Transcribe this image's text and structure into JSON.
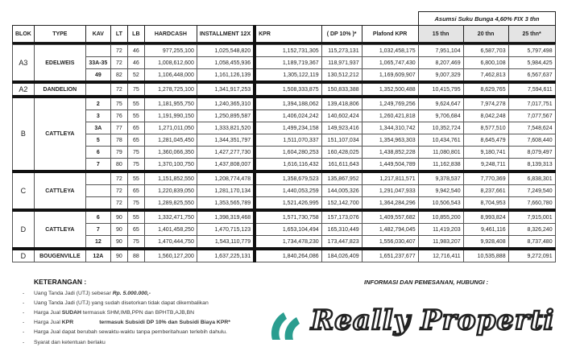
{
  "assumption": "Asumsi Suku Bunga 4,60% FIX 3 thn",
  "headers": [
    "BLOK",
    "TYPE",
    "KAV",
    "LT",
    "LB",
    "HARDCASH",
    "INSTALLMENT 12X",
    "KPR",
    "( DP 10% )*",
    "Plafond KPR",
    "15 thn",
    "20 thn",
    "25 thn*"
  ],
  "groups": [
    {
      "blok": "A3",
      "type": "EDELWEIS",
      "rows": [
        {
          "kav": "",
          "lt": "72",
          "lb": "46",
          "hardcash": "977,255,100",
          "installment": "1,025,548,820",
          "kpr": "1,152,731,305",
          "dp": "115,273,131",
          "plafond": "1,032,458,175",
          "t15": "7,951,104",
          "t20": "6,587,703",
          "t25": "5,797,498"
        },
        {
          "kav": "33A-35",
          "lt": "72",
          "lb": "46",
          "hardcash": "1,008,612,600",
          "installment": "1,058,455,936",
          "kpr": "1,189,719,367",
          "dp": "118,971,937",
          "plafond": "1,065,747,430",
          "t15": "8,207,469",
          "t20": "6,800,108",
          "t25": "5,984,425"
        },
        {
          "kav": "49",
          "lt": "82",
          "lb": "52",
          "hardcash": "1,106,448,000",
          "installment": "1,161,126,139",
          "kpr": "1,305,122,119",
          "dp": "130,512,212",
          "plafond": "1,169,609,907",
          "t15": "9,007,329",
          "t20": "7,462,813",
          "t25": "6,567,637"
        }
      ]
    },
    {
      "blok": "A2",
      "type": "DANDELION",
      "rows": [
        {
          "kav": "",
          "lt": "72",
          "lb": "75",
          "hardcash": "1,278,725,100",
          "installment": "1,341,917,253",
          "kpr": "1,508,333,875",
          "dp": "150,833,388",
          "plafond": "1,352,500,488",
          "t15": "10,415,795",
          "t20": "8,629,765",
          "t25": "7,594,611"
        }
      ]
    },
    {
      "blok": "B",
      "type": "CATTLEYA",
      "rows": [
        {
          "kav": "2",
          "lt": "75",
          "lb": "55",
          "hardcash": "1,181,955,750",
          "installment": "1,240,365,310",
          "kpr": "1,394,188,062",
          "dp": "139,418,806",
          "plafond": "1,249,769,256",
          "t15": "9,624,647",
          "t20": "7,974,278",
          "t25": "7,017,751"
        },
        {
          "kav": "3",
          "lt": "76",
          "lb": "55",
          "hardcash": "1,191,990,150",
          "installment": "1,250,895,587",
          "kpr": "1,406,024,242",
          "dp": "140,602,424",
          "plafond": "1,260,421,818",
          "t15": "9,706,684",
          "t20": "8,042,248",
          "t25": "7,077,567"
        },
        {
          "kav": "3A",
          "lt": "77",
          "lb": "65",
          "hardcash": "1,271,011,050",
          "installment": "1,333,821,520",
          "kpr": "1,499,234,158",
          "dp": "149,923,416",
          "plafond": "1,344,310,742",
          "t15": "10,352,724",
          "t20": "8,577,510",
          "t25": "7,548,624"
        },
        {
          "kav": "5",
          "lt": "78",
          "lb": "65",
          "hardcash": "1,281,045,450",
          "installment": "1,344,351,797",
          "kpr": "1,511,070,337",
          "dp": "151,107,034",
          "plafond": "1,354,963,303",
          "t15": "10,434,761",
          "t20": "8,645,479",
          "t25": "7,608,440"
        },
        {
          "kav": "6",
          "lt": "79",
          "lb": "75",
          "hardcash": "1,360,066,350",
          "installment": "1,427,277,730",
          "kpr": "1,604,280,253",
          "dp": "160,428,025",
          "plafond": "1,438,852,228",
          "t15": "11,080,801",
          "t20": "9,180,741",
          "t25": "8,079,497"
        },
        {
          "kav": "7",
          "lt": "80",
          "lb": "75",
          "hardcash": "1,370,100,750",
          "installment": "1,437,808,007",
          "kpr": "1,616,116,432",
          "dp": "161,611,643",
          "plafond": "1,449,504,789",
          "t15": "11,162,838",
          "t20": "9,248,711",
          "t25": "8,139,313"
        }
      ]
    },
    {
      "blok": "C",
      "type": "CATTLEYA",
      "rows": [
        {
          "kav": "",
          "lt": "72",
          "lb": "55",
          "hardcash": "1,151,852,550",
          "installment": "1,208,774,478",
          "kpr": "1,358,679,523",
          "dp": "135,867,952",
          "plafond": "1,217,811,571",
          "t15": "9,378,537",
          "t20": "7,770,369",
          "t25": "6,838,301"
        },
        {
          "kav": "",
          "lt": "72",
          "lb": "65",
          "hardcash": "1,220,839,050",
          "installment": "1,281,170,134",
          "kpr": "1,440,053,259",
          "dp": "144,005,326",
          "plafond": "1,291,047,933",
          "t15": "9,942,540",
          "t20": "8,237,661",
          "t25": "7,249,540"
        },
        {
          "kav": "",
          "lt": "72",
          "lb": "75",
          "hardcash": "1,289,825,550",
          "installment": "1,353,565,789",
          "kpr": "1,521,426,995",
          "dp": "152,142,700",
          "plafond": "1,364,284,296",
          "t15": "10,506,543",
          "t20": "8,704,953",
          "t25": "7,660,780"
        }
      ]
    },
    {
      "blok": "D",
      "type": "CATTLEYA",
      "rows": [
        {
          "kav": "6",
          "lt": "90",
          "lb": "55",
          "hardcash": "1,332,471,750",
          "installment": "1,398,319,468",
          "kpr": "1,571,730,758",
          "dp": "157,173,076",
          "plafond": "1,409,557,682",
          "t15": "10,855,200",
          "t20": "8,993,824",
          "t25": "7,915,001"
        },
        {
          "kav": "7",
          "lt": "90",
          "lb": "65",
          "hardcash": "1,401,458,250",
          "installment": "1,470,715,123",
          "kpr": "1,653,104,494",
          "dp": "165,310,449",
          "plafond": "1,482,794,045",
          "t15": "11,419,203",
          "t20": "9,461,116",
          "t25": "8,326,240"
        },
        {
          "kav": "12",
          "lt": "90",
          "lb": "75",
          "hardcash": "1,470,444,750",
          "installment": "1,543,110,779",
          "kpr": "1,734,478,230",
          "dp": "173,447,823",
          "plafond": "1,556,030,407",
          "t15": "11,983,207",
          "t20": "9,928,408",
          "t25": "8,737,480"
        }
      ]
    },
    {
      "blok": "D",
      "type": "BOUGENVILLE",
      "rows": [
        {
          "kav": "12A",
          "lt": "90",
          "lb": "88",
          "hardcash": "1,560,127,200",
          "installment": "1,637,225,131",
          "kpr": "1,840,264,086",
          "dp": "184,026,409",
          "plafond": "1,651,237,677",
          "t15": "12,716,411",
          "t20": "10,535,888",
          "t25": "9,272,091"
        }
      ]
    }
  ],
  "notes": {
    "title": "KETERANGAN   :",
    "items": [
      [
        "Uang Tanda Jadi (UTJ) sebesar ",
        "Rp.  5.000.000,-",
        ""
      ],
      [
        "Uang Tanda Jadi (UTJ) yang sudah disetorkan tidak dapat dikembalikan",
        "",
        ""
      ],
      [
        "Harga Jual ",
        "SUDAH",
        " termasuk SHM,IMB,PPN dan BPHTB,AJB,BN"
      ],
      [
        "Harga Jual ",
        "KPR",
        "                 termasuk Subsidi DP 10% dan Subsidi Biaya KPR*"
      ],
      [
        "Harga Jual dapat berubah sewaktu-waktu tanpa pemberitahuan terlebih dahulu.",
        "",
        ""
      ],
      [
        "Syarat dan ketentuan berlaku",
        "",
        ""
      ]
    ]
  },
  "contact": "INFORMASI DAN PEMESANAN, HUBUNGI  :",
  "logo": {
    "text": "Really Properti",
    "color": "#2a9d8f"
  }
}
